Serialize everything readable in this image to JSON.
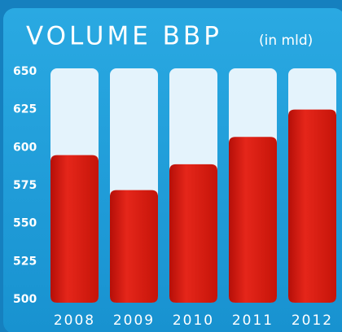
{
  "chart_data": {
    "type": "bar",
    "title": "VOLUME BBP",
    "subtitle": "(in mld)",
    "categories": [
      "2008",
      "2009",
      "2010",
      "2011",
      "2012"
    ],
    "values": [
      595,
      572,
      589,
      607,
      625
    ],
    "color": "#d91a10",
    "ylim": [
      500,
      650
    ],
    "yticks": [
      500,
      525,
      550,
      575,
      600,
      625,
      650
    ]
  }
}
